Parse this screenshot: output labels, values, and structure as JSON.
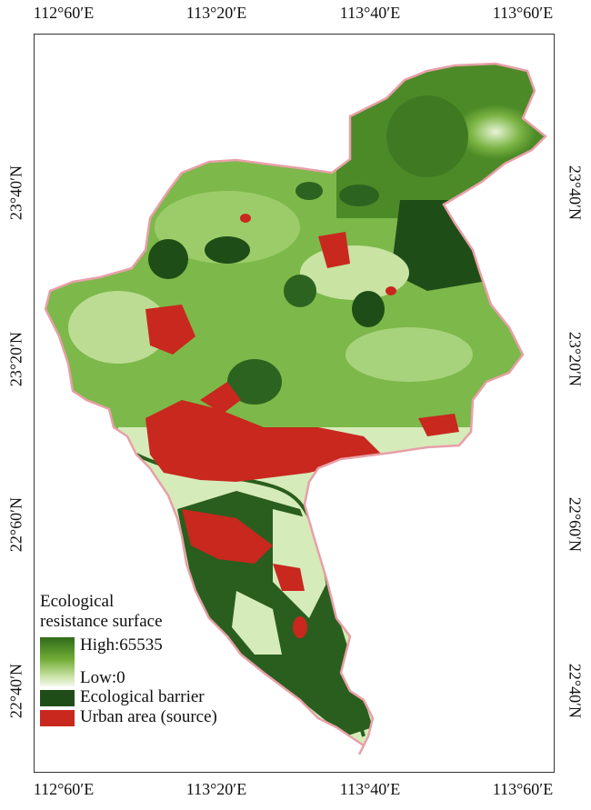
{
  "map": {
    "lon_ticks": [
      "112°60′E",
      "113°20′E",
      "113°40′E",
      "113°60′E"
    ],
    "lat_ticks": [
      "23°40′N",
      "23°20′N",
      "22°60′N",
      "22°40′N"
    ]
  },
  "legend": {
    "title_line1": "Ecological",
    "title_line2": "resistance surface",
    "high_label": "High:65535",
    "low_label": "Low:0",
    "barrier_label": "Ecological barrier",
    "urban_label": "Urban area (source)"
  },
  "colors": {
    "dark_green": "#1f4d17",
    "mid_green": "#5b9a2e",
    "light_green": "#cfe6ad",
    "urban_red": "#c8281e",
    "boundary_pink": "#e8a0a8"
  }
}
